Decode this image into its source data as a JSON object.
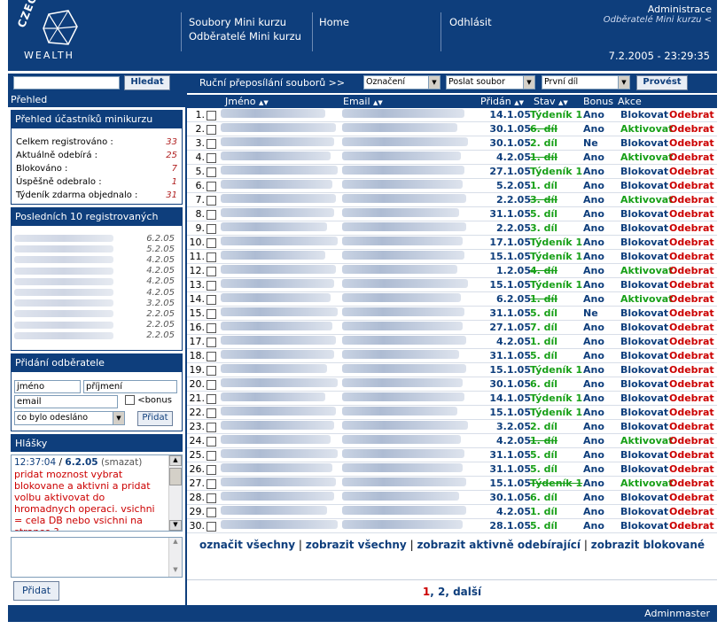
{
  "header": {
    "logo_top": "CZECH",
    "logo_bottom": "WEALTH",
    "nav1": [
      "Soubory Mini kurzu",
      "Odběratelé Mini kurzu"
    ],
    "nav2": "Home",
    "nav3": "Odhlásit",
    "admin_title": "Administrace",
    "admin_sub": "Odběratelé Mini kurzu <",
    "datetime": "7.2.2005 - 23:29:35"
  },
  "sidebar": {
    "search_button": "Hledat",
    "prehled": "Přehled",
    "overview": {
      "title": "Přehled účastníků minikurzu",
      "stats": [
        {
          "label": "Celkem registrováno :",
          "value": "33"
        },
        {
          "label": "Aktuálně odebírá :",
          "value": "25"
        },
        {
          "label": "Blokováno :",
          "value": "7"
        },
        {
          "label": "Úspěšně odebralo :",
          "value": "1"
        },
        {
          "label": "Týdeník zdarma objednalo :",
          "value": "31"
        }
      ]
    },
    "last10": {
      "title": "Posledních 10 registrovaných",
      "dates": [
        "6.2.05",
        "5.2.05",
        "4.2.05",
        "4.2.05",
        "4.2.05",
        "4.2.05",
        "3.2.05",
        "2.2.05",
        "2.2.05",
        "2.2.05"
      ]
    },
    "add": {
      "title": "Přidání odběratele",
      "first": "jméno",
      "last": "příjmení",
      "email": "email",
      "bonus": "<bonus",
      "select": "co bylo odesláno",
      "button": "Přidat"
    },
    "msgs": {
      "title": "Hlášky",
      "time": "12:37:04",
      "slash": " / ",
      "date": "6.2.05",
      "del": "(smazat)",
      "text": "pridat moznost vybrat blokovane a aktivni a pridat volbu aktivovat do hromadnych operaci. vsichni = cela DB nebo vsichni na strance ?",
      "button": "Přidat"
    }
  },
  "main": {
    "topbar": {
      "label": "Ruční přeposílání souborů >>",
      "sel1": "Označení",
      "sel2": "Poslat soubor",
      "sel3": "První díl",
      "button": "Provést"
    },
    "cols": {
      "name": "Jméno",
      "email": "Email",
      "added": "Přidán",
      "state": "Stav",
      "bonus": "Bonus",
      "action": "Akce",
      "sort": "▲▼"
    },
    "rows": [
      {
        "n": "1.",
        "d": "14.1.05",
        "s": "Týdeník 1",
        "x": false,
        "b": "Ano",
        "a": "Blokovat"
      },
      {
        "n": "2.",
        "d": "30.1.05",
        "s": "6. díl",
        "x": true,
        "b": "Ano",
        "a": "Aktivovat"
      },
      {
        "n": "3.",
        "d": "30.1.05",
        "s": "2. díl",
        "x": false,
        "b": "Ne",
        "a": "Blokovat"
      },
      {
        "n": "4.",
        "d": "4.2.05",
        "s": "1. díl",
        "x": true,
        "b": "Ano",
        "a": "Aktivovat"
      },
      {
        "n": "5.",
        "d": "27.1.05",
        "s": "Týdeník 1",
        "x": false,
        "b": "Ano",
        "a": "Blokovat"
      },
      {
        "n": "6.",
        "d": "5.2.05",
        "s": "1. díl",
        "x": false,
        "b": "Ano",
        "a": "Blokovat"
      },
      {
        "n": "7.",
        "d": "2.2.05",
        "s": "3. díl",
        "x": true,
        "b": "Ano",
        "a": "Aktivovat"
      },
      {
        "n": "8.",
        "d": "31.1.05",
        "s": "5. díl",
        "x": false,
        "b": "Ano",
        "a": "Blokovat"
      },
      {
        "n": "9.",
        "d": "2.2.05",
        "s": "3. díl",
        "x": false,
        "b": "Ano",
        "a": "Blokovat"
      },
      {
        "n": "10.",
        "d": "17.1.05",
        "s": "Týdeník 1",
        "x": false,
        "b": "Ano",
        "a": "Blokovat"
      },
      {
        "n": "11.",
        "d": "15.1.05",
        "s": "Týdeník 1",
        "x": false,
        "b": "Ano",
        "a": "Blokovat"
      },
      {
        "n": "12.",
        "d": "1.2.05",
        "s": "4. díl",
        "x": true,
        "b": "Ano",
        "a": "Aktivovat"
      },
      {
        "n": "13.",
        "d": "15.1.05",
        "s": "Týdeník 1",
        "x": false,
        "b": "Ano",
        "a": "Blokovat"
      },
      {
        "n": "14.",
        "d": "6.2.05",
        "s": "1. díl",
        "x": true,
        "b": "Ano",
        "a": "Aktivovat"
      },
      {
        "n": "15.",
        "d": "31.1.05",
        "s": "5. díl",
        "x": false,
        "b": "Ne",
        "a": "Blokovat"
      },
      {
        "n": "16.",
        "d": "27.1.05",
        "s": "7. díl",
        "x": false,
        "b": "Ano",
        "a": "Blokovat"
      },
      {
        "n": "17.",
        "d": "4.2.05",
        "s": "1. díl",
        "x": false,
        "b": "Ano",
        "a": "Blokovat"
      },
      {
        "n": "18.",
        "d": "31.1.05",
        "s": "5. díl",
        "x": false,
        "b": "Ano",
        "a": "Blokovat"
      },
      {
        "n": "19.",
        "d": "15.1.05",
        "s": "Týdeník 1",
        "x": false,
        "b": "Ano",
        "a": "Blokovat"
      },
      {
        "n": "20.",
        "d": "30.1.05",
        "s": "6. díl",
        "x": false,
        "b": "Ano",
        "a": "Blokovat"
      },
      {
        "n": "21.",
        "d": "14.1.05",
        "s": "Týdeník 1",
        "x": false,
        "b": "Ano",
        "a": "Blokovat"
      },
      {
        "n": "22.",
        "d": "15.1.05",
        "s": "Týdeník 1",
        "x": false,
        "b": "Ano",
        "a": "Blokovat"
      },
      {
        "n": "23.",
        "d": "3.2.05",
        "s": "2. díl",
        "x": false,
        "b": "Ano",
        "a": "Blokovat"
      },
      {
        "n": "24.",
        "d": "4.2.05",
        "s": "1. díl",
        "x": true,
        "b": "Ano",
        "a": "Aktivovat"
      },
      {
        "n": "25.",
        "d": "31.1.05",
        "s": "5. díl",
        "x": false,
        "b": "Ano",
        "a": "Blokovat"
      },
      {
        "n": "26.",
        "d": "31.1.05",
        "s": "5. díl",
        "x": false,
        "b": "Ano",
        "a": "Blokovat"
      },
      {
        "n": "27.",
        "d": "15.1.05",
        "s": "Týdeník 1",
        "x": true,
        "b": "Ano",
        "a": "Aktivovat"
      },
      {
        "n": "28.",
        "d": "30.1.05",
        "s": "6. díl",
        "x": false,
        "b": "Ano",
        "a": "Blokovat"
      },
      {
        "n": "29.",
        "d": "4.2.05",
        "s": "1. díl",
        "x": false,
        "b": "Ano",
        "a": "Blokovat"
      },
      {
        "n": "30.",
        "d": "28.1.05",
        "s": "5. díl",
        "x": false,
        "b": "Ano",
        "a": "Blokovat"
      }
    ],
    "remove": "Odebrat",
    "links": [
      "označit všechny",
      "zobrazit všechny",
      "zobrazit aktivně odebírající",
      "zobrazit blokované"
    ],
    "link_sep": " | ",
    "pager": {
      "p1": "1",
      "p2": "2",
      "next": "další",
      "sep": ", "
    }
  },
  "footer": "Adminmaster"
}
